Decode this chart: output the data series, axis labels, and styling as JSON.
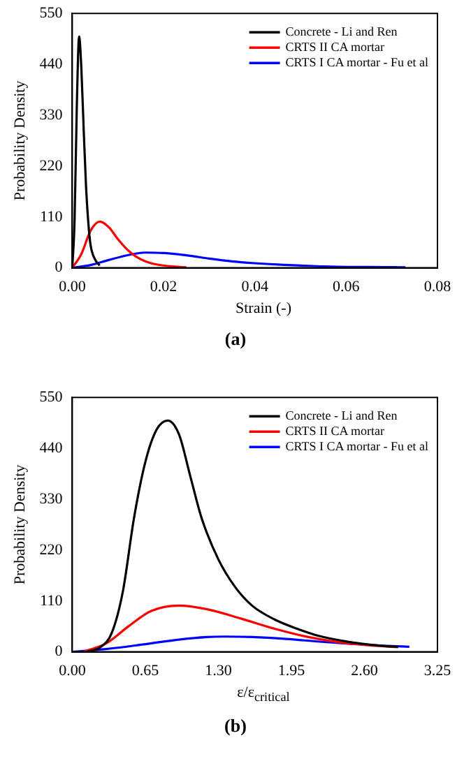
{
  "chart_data": [
    {
      "type": "line",
      "xlabel": "Strain (-)",
      "ylabel": "Probability Density",
      "annotations": [
        "(a)"
      ],
      "legend": "top right",
      "marker": "none",
      "line_style": "solid",
      "grid": false,
      "xlim": [
        0,
        0.08
      ],
      "xticks": [
        {
          "value": 0,
          "label": "0.00"
        },
        {
          "value": 0.02,
          "label": "0.02"
        },
        {
          "value": 0.04,
          "label": "0.04"
        },
        {
          "value": 0.06,
          "label": "0.06"
        },
        {
          "value": 0.08,
          "label": "0.08"
        }
      ],
      "ylim": [
        0,
        550
      ],
      "yticks": [
        0,
        110,
        220,
        330,
        440,
        550
      ],
      "series": [
        {
          "name": "Concrete - Li and Ren",
          "color": "#000000",
          "x": [
            0,
            0.0005,
            0.001,
            0.0015,
            0.002,
            0.0025,
            0.003,
            0.0035,
            0.004,
            0.005,
            0.006
          ],
          "values": [
            0,
            100,
            350,
            500,
            430,
            300,
            180,
            100,
            50,
            18,
            5
          ]
        },
        {
          "name": "CRTS II CA mortar",
          "color": "#ff0000",
          "x": [
            0,
            0.002,
            0.004,
            0.006,
            0.008,
            0.01,
            0.012,
            0.014,
            0.016,
            0.018,
            0.02,
            0.022,
            0.025
          ],
          "values": [
            0,
            30,
            80,
            100,
            88,
            62,
            40,
            24,
            14,
            8,
            5,
            3,
            1
          ]
        },
        {
          "name": "CRTS I CA mortar - Fu et al",
          "color": "#0000ff",
          "x": [
            0,
            0.004,
            0.008,
            0.012,
            0.016,
            0.02,
            0.025,
            0.03,
            0.035,
            0.04,
            0.045,
            0.05,
            0.055,
            0.06,
            0.065,
            0.073
          ],
          "values": [
            0,
            6,
            17,
            27,
            33,
            32,
            27,
            20,
            14,
            10,
            7,
            5,
            3,
            2,
            2,
            1
          ]
        }
      ]
    },
    {
      "type": "line",
      "xlabel": "ε/ε$_{critical}$",
      "ylabel": "Probability Density",
      "annotations": [
        "(b)"
      ],
      "legend": "top right",
      "marker": "none",
      "line_style": "solid",
      "grid": false,
      "xlim": [
        0,
        3.25
      ],
      "xticks": [
        {
          "value": 0,
          "label": "0.00"
        },
        {
          "value": 0.65,
          "label": "0.65"
        },
        {
          "value": 1.3,
          "label": "1.30"
        },
        {
          "value": 1.95,
          "label": "1.95"
        },
        {
          "value": 2.6,
          "label": "2.60"
        },
        {
          "value": 3.25,
          "label": "3.25"
        }
      ],
      "ylim": [
        0,
        550
      ],
      "yticks": [
        0,
        110,
        220,
        330,
        440,
        550
      ],
      "series": [
        {
          "name": "Concrete - Li and Ren",
          "color": "#000000",
          "x": [
            0.13,
            0.25,
            0.35,
            0.45,
            0.55,
            0.65,
            0.75,
            0.85,
            0.95,
            1.05,
            1.15,
            1.3,
            1.45,
            1.6,
            1.8,
            2.0,
            2.2,
            2.5,
            2.8,
            2.9
          ],
          "values": [
            0,
            10,
            40,
            130,
            290,
            410,
            480,
            500,
            470,
            380,
            290,
            200,
            140,
            100,
            70,
            50,
            34,
            20,
            12,
            11
          ]
        },
        {
          "name": "CRTS II CA mortar",
          "color": "#ff0000",
          "x": [
            0.1,
            0.3,
            0.5,
            0.7,
            0.95,
            1.2,
            1.5,
            1.8,
            2.1,
            2.4,
            2.7,
            2.9
          ],
          "values": [
            0,
            18,
            55,
            88,
            100,
            92,
            72,
            50,
            32,
            20,
            13,
            10
          ]
        },
        {
          "name": "CRTS I CA mortar - Fu et al",
          "color": "#0000ff",
          "x": [
            0,
            0.3,
            0.6,
            0.9,
            1.2,
            1.35,
            1.6,
            1.9,
            2.2,
            2.5,
            2.8,
            3.0
          ],
          "values": [
            0,
            6,
            15,
            25,
            32,
            33,
            32,
            28,
            22,
            17,
            13,
            11
          ]
        }
      ]
    }
  ]
}
